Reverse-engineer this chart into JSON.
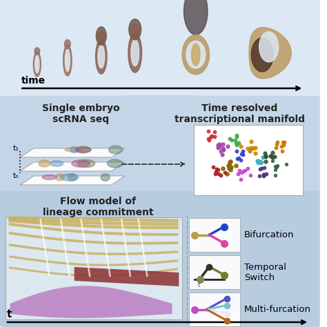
{
  "bg_top": "#dce8f3",
  "bg_middle": "#c5d5e8",
  "bg_bottom": "#b8cce0",
  "chevron_color1": "#c5d5e8",
  "chevron_color2": "#b8cce0",
  "top_label_time": "time",
  "middle_left_title": "Single embryo\nscRNA seq",
  "middle_right_title": "Time resolved\ntranscriptional manifold",
  "bottom_left_title": "Flow model of\nlineage commitment",
  "legend_items": [
    "Bifurcation",
    "Temporal\nSwitch",
    "Multi-furcation"
  ],
  "t_axis_label": "t",
  "t1_label": "t₁",
  "tn_label": "tₙ",
  "tan_color": "#c8b060",
  "dark_red_color": "#8b3030",
  "purple_color": "#b878c0",
  "bifurcation_trunk": "#b8a040",
  "bifurcation_up": "#2244cc",
  "bifurcation_down": "#e040a0",
  "temporal_trunk": "#708030",
  "temporal_dark": "#303020",
  "multifurcation_stem": "#c050c0",
  "multifurcation_colors": [
    "#5050c0",
    "#80c0d0",
    "#e8e8f8",
    "#c06020"
  ]
}
